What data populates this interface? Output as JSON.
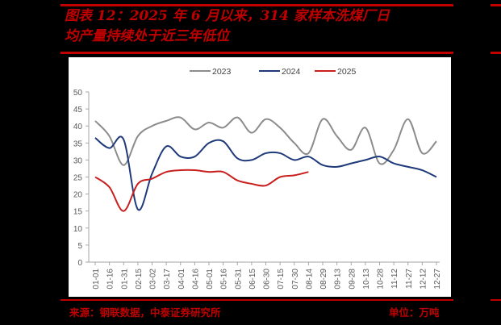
{
  "header": {
    "title_line1": "图表 12：2025 年 6 月以来，314 家样本洗煤厂日",
    "title_line2": "均产量持续处于近三年低位"
  },
  "footer": {
    "source": "来源：钢联数据，中泰证券研究所",
    "unit": "单位：万吨"
  },
  "colors": {
    "accent": "#c00000",
    "series_2023": "#8c8c8c",
    "series_2024": "#1f3a7a",
    "series_2025": "#c81e1e"
  },
  "chart_data": {
    "type": "line",
    "title": "2025 年 6 月以来，314 家样本洗煤厂日均产量持续处于近三年低位",
    "xlabel": "",
    "ylabel": "万吨",
    "ylim": [
      0,
      50
    ],
    "yticks": [
      0,
      5,
      10,
      15,
      20,
      25,
      30,
      35,
      40,
      45,
      50
    ],
    "legend_position": "top",
    "grid": false,
    "categories": [
      "01-01",
      "01-16",
      "01-31",
      "02-15",
      "03-02",
      "03-17",
      "04-01",
      "04-16",
      "05-01",
      "05-16",
      "05-31",
      "06-15",
      "06-30",
      "07-15",
      "07-30",
      "08-14",
      "08-29",
      "09-13",
      "09-28",
      "10-13",
      "10-28",
      "11-12",
      "11-27",
      "12-12",
      "12-27"
    ],
    "series": [
      {
        "name": "2023",
        "values": [
          41.5,
          37,
          28.5,
          37,
          40,
          41.5,
          42.5,
          39,
          41,
          39.5,
          42.5,
          38,
          42,
          39.5,
          35,
          32,
          42,
          37,
          33,
          39.5,
          29,
          33,
          42,
          32,
          35.5
        ]
      },
      {
        "name": "2024",
        "values": [
          36.5,
          33.5,
          36,
          15.5,
          26,
          34,
          31,
          31,
          35,
          35.5,
          30.5,
          30,
          32,
          32,
          30,
          31,
          28.5,
          28,
          29,
          30,
          31,
          29,
          28,
          27,
          25
        ]
      },
      {
        "name": "2025",
        "values": [
          25,
          22,
          15,
          23,
          24.5,
          26.5,
          27,
          27,
          26.5,
          26.5,
          24,
          23,
          22.5,
          25,
          25.5,
          26.5,
          null,
          null,
          null,
          null,
          null,
          null,
          null,
          null,
          null
        ]
      }
    ]
  }
}
